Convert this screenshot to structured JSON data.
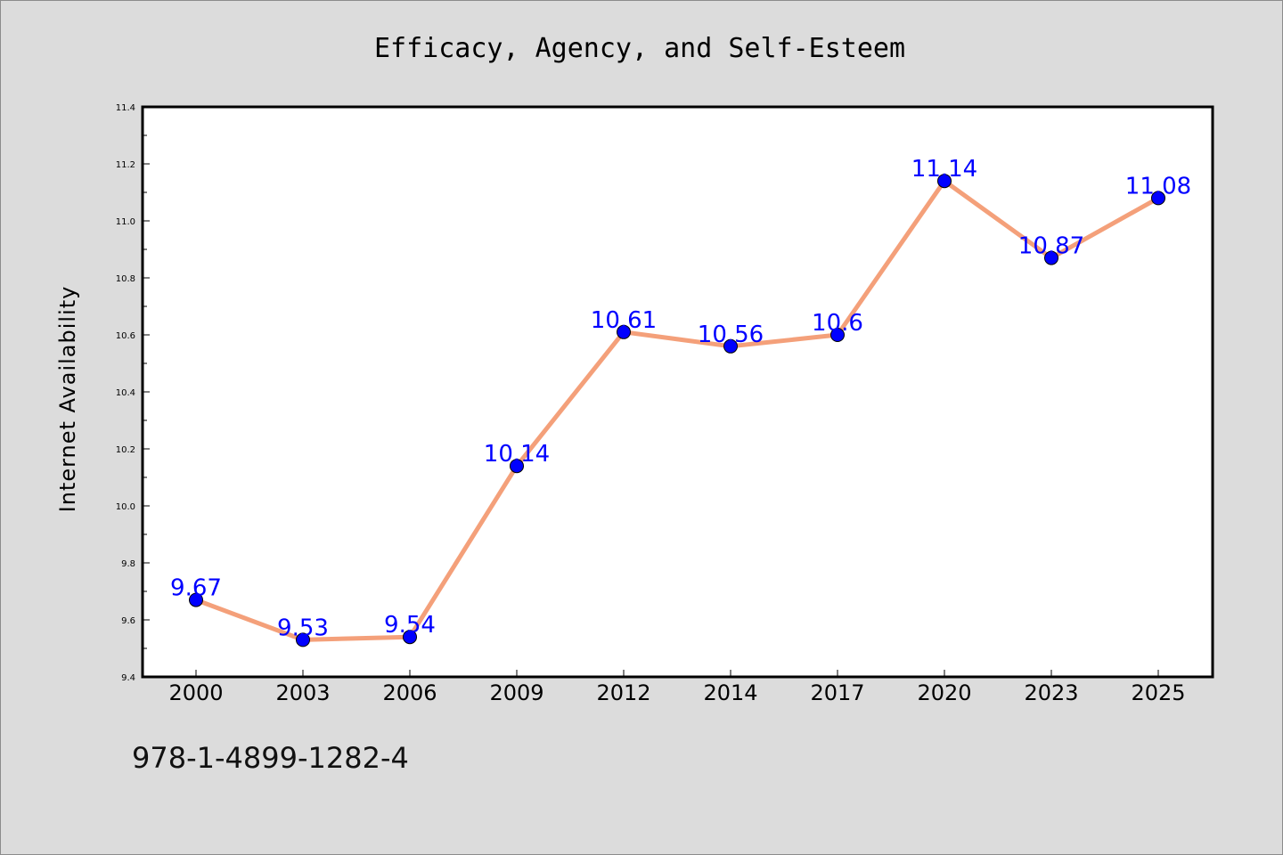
{
  "chart_data": {
    "type": "line",
    "title": "Efficacy, Agency, and Self-Esteem",
    "xlabel": "",
    "ylabel": "Internet Availability",
    "categories": [
      "2000",
      "2003",
      "2006",
      "2009",
      "2012",
      "2014",
      "2017",
      "2020",
      "2023",
      "2025"
    ],
    "values": [
      9.67,
      9.53,
      9.54,
      10.14,
      10.61,
      10.56,
      10.6,
      11.14,
      10.87,
      11.08
    ],
    "data_labels": [
      "9.67",
      "9.53",
      "9.54",
      "10.14",
      "10.61",
      "10.56",
      "10.6",
      "11.14",
      "10.87",
      "11.08"
    ],
    "ylim": [
      9.4,
      11.4
    ],
    "yticks": [
      "9.4",
      "9.6",
      "9.8",
      "10.0",
      "10.2",
      "10.4",
      "10.6",
      "10.8",
      "11.0",
      "11.2",
      "11.4"
    ],
    "grid": false,
    "legend": "none",
    "colors": {
      "line": "#f4a07a",
      "marker": "#0000ff",
      "data_label": "#0000ff",
      "background": "#dcdcdc",
      "plot_area": "#ffffff"
    }
  },
  "footer": {
    "isbn": "978-1-4899-1282-4"
  }
}
